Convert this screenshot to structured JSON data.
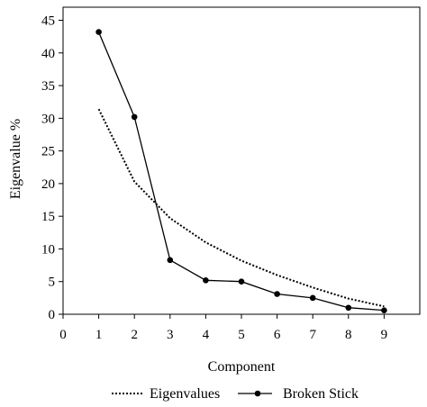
{
  "chart_data": {
    "type": "line",
    "xlabel": "Component",
    "ylabel": "Eigenvalue %",
    "xlim": [
      0,
      10
    ],
    "ylim": [
      0,
      47
    ],
    "xticks": [
      0,
      1,
      2,
      3,
      4,
      5,
      6,
      7,
      8,
      9
    ],
    "yticks": [
      0,
      5,
      10,
      15,
      20,
      25,
      30,
      35,
      40,
      45
    ],
    "grid": false,
    "legend_position": "bottom",
    "series": [
      {
        "name": "Eigenvalues",
        "style": "dotted",
        "marker": "none",
        "color": "#000000",
        "x": [
          1,
          2,
          3,
          4,
          5,
          6,
          7,
          8,
          9
        ],
        "values": [
          31.4,
          20.3,
          14.7,
          11.0,
          8.2,
          6.0,
          4.1,
          2.4,
          1.2
        ]
      },
      {
        "name": "Broken Stick",
        "style": "solid",
        "marker": "circle",
        "color": "#000000",
        "x": [
          1,
          2,
          3,
          4,
          5,
          6,
          7,
          8,
          9
        ],
        "values": [
          43.2,
          30.2,
          8.3,
          5.2,
          5.0,
          3.1,
          2.5,
          1.0,
          0.6
        ]
      }
    ]
  }
}
